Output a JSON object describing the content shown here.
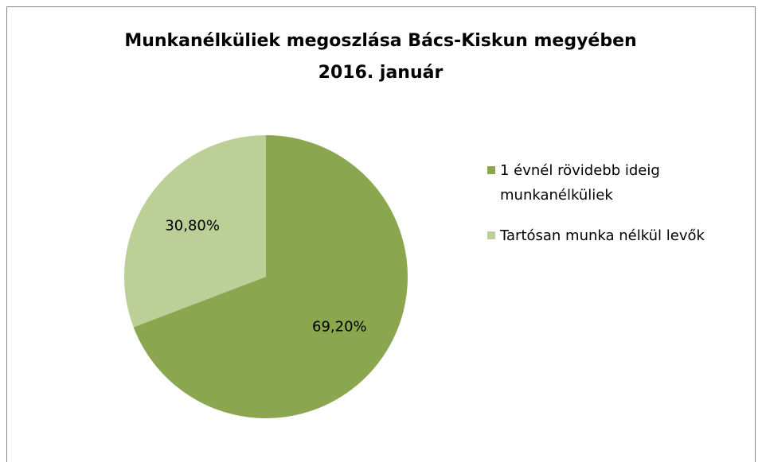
{
  "chart_data": {
    "type": "pie",
    "title": [
      "Munkanélküliek megoszlása Bács-Kiskun megyében",
      "2016. január"
    ],
    "categories": [
      "1 évnél rövidebb ideig munkanélküliek",
      "Tartósan munka nélkül levők"
    ],
    "values": [
      69.2,
      30.8
    ],
    "value_labels": [
      "69,20%",
      "30,80%"
    ],
    "colors": [
      "#8aa64e",
      "#bccf96"
    ],
    "legend": "right"
  }
}
